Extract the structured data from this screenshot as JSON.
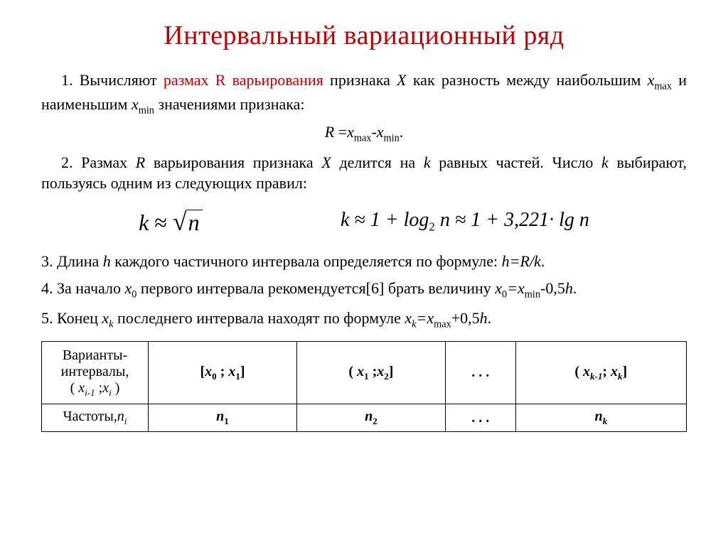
{
  "title": "Интервальный вариационный ряд",
  "title_color": "#c00000",
  "p1_a": "1. Вычисляют ",
  "p1_b": "размах R варьирования",
  "p1_c": " признака ",
  "p1_d": " как разность между наибольшим ",
  "p1_e": " и наименьшим ",
  "p1_f": " значениями признака:",
  "sym_X": "X",
  "sym_xmax": "x",
  "sym_xmin": "x",
  "sub_max": "max",
  "sub_min": "min",
  "formula1_a": "R ",
  "formula1_b": "=",
  "formula1_c": "x",
  "formula1_d": "-",
  "formula1_e": "x",
  "formula1_f": ".",
  "p2_a": "2. Размах ",
  "p2_b": " варьирования признака ",
  "p2_c": " делится на ",
  "p2_d": " равных частей. Число ",
  "p2_e": " выбирают, пользуясь одним из следующих правил:",
  "sym_R": "R",
  "sym_k": "k",
  "f2a_k": "k",
  "f2a_approx": " ≈ ",
  "f2a_n": "n",
  "f2b": "k ≈ 1 + log",
  "f2b_sub": "2",
  "f2b_mid": " n ≈ 1 + 3,221· lg ",
  "f2b_end": "n",
  "p3_a": "3. Длина ",
  "p3_b": " каждого частичного интервала определяется по формуле: ",
  "p3_c": ".",
  "sym_h": "h",
  "p3_formula": "h=R/k",
  "p4_a": "4. За начало ",
  "p4_b": " первого интервала рекомендуется[6] брать величину ",
  "p4_c": "-0,5",
  "p4_d": ".",
  "sym_x0": "x",
  "sub_0": "0",
  "p5_a": "5. Конец ",
  "p5_b": " последнего интервала находят по формуле ",
  "p5_c": "+0,5",
  "p5_d": ".",
  "sym_xk": "x",
  "sub_k": "k",
  "table": {
    "r0c0_l1": "Варианты-",
    "r0c0_l2": "интервалы,",
    "r0c0_l3a": "( ",
    "r0c0_l3b": " ;",
    "r0c0_l3c": " )",
    "sym_xi1": "x",
    "sub_i1": "i-1",
    "sym_xi": "x",
    "sub_i": "i",
    "r0c1_a": "[",
    "r0c1_b": " ; ",
    "r0c1_c": "]",
    "r0c2_a": "( ",
    "r0c2_b": " ;",
    "r0c2_c": "]",
    "sym_x1": "x",
    "sub_1": "1",
    "sym_x2": "x",
    "sub_2": "2",
    "dots": ". . .",
    "r0c4_a": "( ",
    "r0c4_b": "; ",
    "r0c4_c": "]",
    "sym_xk1": "x",
    "sub_k1": "k-1",
    "r1c0_a": "Частоты,",
    "r1c0_b": "n",
    "r1c1": "n",
    "r1c2": "n",
    "r1c4": "n"
  }
}
